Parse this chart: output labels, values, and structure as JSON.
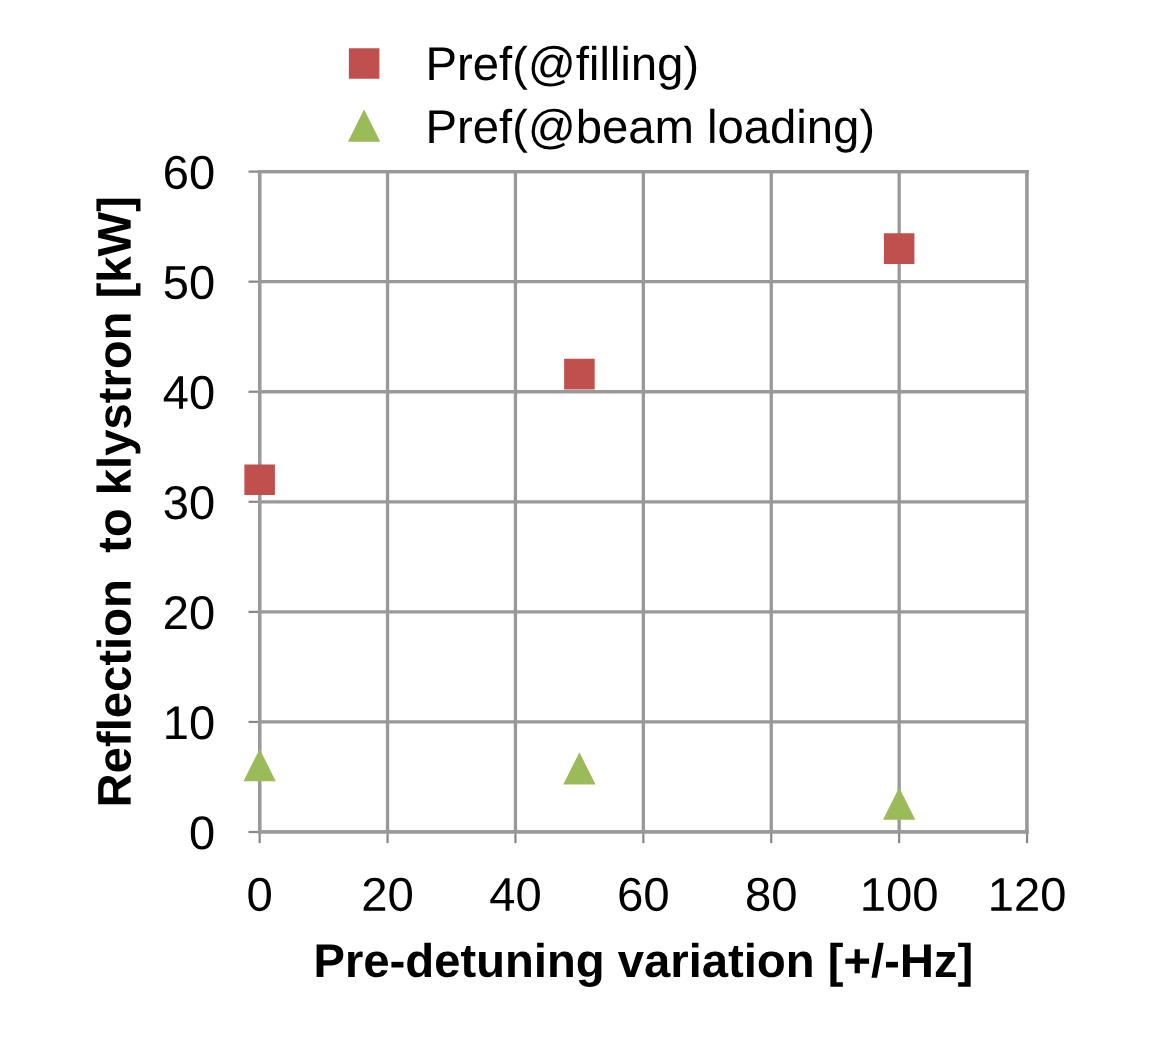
{
  "chart_data": {
    "type": "scatter",
    "xlabel": "Pre-detuning variation [+/-Hz]",
    "ylabel": "Reflection  to klystron [kW]",
    "x": [
      0,
      50,
      100
    ],
    "series": [
      {
        "name": "Pref(@filling)",
        "color": "#c0504d",
        "marker": "square",
        "values": [
          32,
          41.6,
          53
        ]
      },
      {
        "name": "Pref(@beam loading)",
        "color": "#9bbb59",
        "marker": "triangle",
        "values": [
          6,
          5.7,
          2.5
        ]
      }
    ],
    "xlim": [
      0,
      120
    ],
    "xticks": [
      0,
      20,
      40,
      60,
      80,
      100,
      120
    ],
    "ylim": [
      0,
      60
    ],
    "yticks": [
      0,
      10,
      20,
      30,
      40,
      50,
      60
    ],
    "grid": true,
    "legend": "top"
  }
}
